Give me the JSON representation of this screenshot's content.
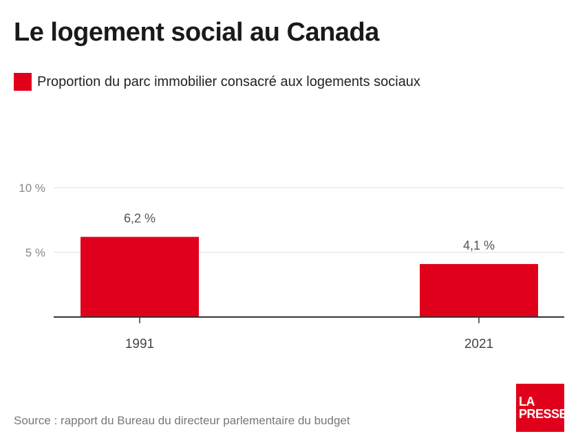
{
  "title": "Le logement social au Canada",
  "legend": {
    "label": "Proportion du parc immobilier consacré aux logements sociaux",
    "color": "#e0001b"
  },
  "source": "Source : rapport du Bureau du directeur parlementaire du budget",
  "logo": {
    "line1": "LA",
    "line2": "PRESSE"
  },
  "chart_data": {
    "type": "bar",
    "title": "Le logement social au Canada",
    "categories": [
      "1991",
      "2021"
    ],
    "series": [
      {
        "name": "Proportion du parc immobilier consacré aux logements sociaux",
        "values": [
          6.2,
          4.1
        ],
        "labels": [
          "6,2 %",
          "4,1 %"
        ]
      }
    ],
    "yticks": [
      {
        "value": 5,
        "label": "5 %"
      },
      {
        "value": 10,
        "label": "10 %"
      }
    ],
    "ylim": [
      0,
      10
    ],
    "xlabel": "",
    "ylabel": "",
    "grid": true,
    "legend_position": "top-left",
    "bar_color": "#e0001b",
    "grid_color": "#dddddd",
    "axis_color": "#333333"
  }
}
